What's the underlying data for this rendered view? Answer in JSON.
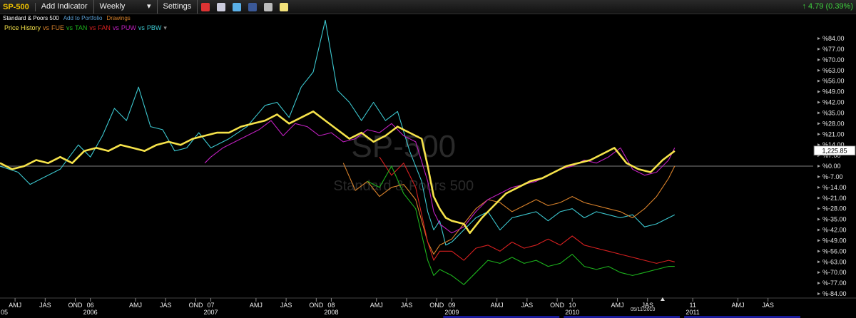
{
  "toolbar": {
    "symbol": "SP-500",
    "add_indicator": "Add Indicator",
    "period": "Weekly",
    "settings": "Settings",
    "change": "4.79 (0.39%)",
    "icons": [
      "clock-icon",
      "book-icon",
      "twitter-icon",
      "facebook-icon",
      "camera-icon",
      "note-icon"
    ]
  },
  "subbar": {
    "name": "Standard & Poors 500",
    "add_portfolio": "Add to Portfolio",
    "drawings": "Drawings"
  },
  "legend": [
    {
      "label": "Price History",
      "color": "#f5e24a"
    },
    {
      "label": "vs",
      "color": "#d9822b"
    },
    {
      "label": "FUE",
      "color": "#d9822b"
    },
    {
      "label": "vs",
      "color": "#1db31d"
    },
    {
      "label": "TAN",
      "color": "#1db31d"
    },
    {
      "label": "vs",
      "color": "#d62020"
    },
    {
      "label": "FAN",
      "color": "#d62020"
    },
    {
      "label": "vs",
      "color": "#c020c0"
    },
    {
      "label": "PUW",
      "color": "#c020c0"
    },
    {
      "label": "vs",
      "color": "#3cc7cf"
    },
    {
      "label": "PBW",
      "color": "#3cc7cf"
    },
    {
      "label": "▾",
      "color": "#888888"
    }
  ],
  "watermark": {
    "symbol": "SP-500",
    "name": "Standard & Poors 500"
  },
  "last_value": "1,225.85",
  "date_label": "05/11/2010",
  "chart_data": {
    "type": "line",
    "y_axis_labels": [
      "%84.00",
      "%77.00",
      "%70.00",
      "%63.00",
      "%56.00",
      "%49.00",
      "%42.00",
      "%35.00",
      "%28.00",
      "%21.00",
      "%14.00",
      "%7.00",
      "%0.00",
      "%-7.00",
      "%-14.00",
      "%-21.00",
      "%-28.00",
      "%-35.00",
      "%-42.00",
      "%-49.00",
      "%-56.00",
      "%-63.00",
      "%-70.00",
      "%-77.00",
      "%-84.00"
    ],
    "ylim": [
      -84,
      84
    ],
    "xlim": [
      2005.25,
      2012.0
    ],
    "x_ticks": [
      {
        "label": "05",
        "x": 2005.0
      },
      {
        "label": "AMJ",
        "x": 2005.375
      },
      {
        "label": "JAS",
        "x": 2005.625
      },
      {
        "label": "OND",
        "x": 2005.875
      },
      {
        "label": "06",
        "x": 2006.0
      },
      {
        "label": "AMJ",
        "x": 2006.375
      },
      {
        "label": "JAS",
        "x": 2006.625
      },
      {
        "label": "OND",
        "x": 2006.875
      },
      {
        "label": "07",
        "x": 2007.0
      },
      {
        "label": "AMJ",
        "x": 2007.375
      },
      {
        "label": "JAS",
        "x": 2007.625
      },
      {
        "label": "OND",
        "x": 2007.875
      },
      {
        "label": "08",
        "x": 2008.0
      },
      {
        "label": "AMJ",
        "x": 2008.375
      },
      {
        "label": "JAS",
        "x": 2008.625
      },
      {
        "label": "OND",
        "x": 2008.875
      },
      {
        "label": "09",
        "x": 2009.0
      },
      {
        "label": "AMJ",
        "x": 2009.375
      },
      {
        "label": "JAS",
        "x": 2009.625
      },
      {
        "label": "OND",
        "x": 2009.875
      },
      {
        "label": "10",
        "x": 2010.0
      },
      {
        "label": "AMJ",
        "x": 2010.375
      },
      {
        "label": "JAS",
        "x": 2010.625
      },
      {
        "label": "11",
        "x": 2011.0
      },
      {
        "label": "AMJ",
        "x": 2011.375
      },
      {
        "label": "JAS",
        "x": 2011.625
      }
    ],
    "year_labels": [
      {
        "label": "2006",
        "x": 2006.0
      },
      {
        "label": "2007",
        "x": 2007.0
      },
      {
        "label": "2008",
        "x": 2008.0
      },
      {
        "label": "2009",
        "x": 2009.0
      },
      {
        "label": "2010",
        "x": 2010.0
      },
      {
        "label": "2011",
        "x": 2011.0
      }
    ],
    "series": [
      {
        "name": "PBW",
        "color": "#3cc7cf",
        "x": [
          2005.25,
          2005.4,
          2005.5,
          2005.6,
          2005.75,
          2005.9,
          2006.0,
          2006.1,
          2006.2,
          2006.3,
          2006.4,
          2006.5,
          2006.6,
          2006.7,
          2006.8,
          2006.9,
          2007.0,
          2007.15,
          2007.3,
          2007.45,
          2007.55,
          2007.65,
          2007.75,
          2007.85,
          2007.95,
          2008.05,
          2008.15,
          2008.25,
          2008.35,
          2008.45,
          2008.55,
          2008.65,
          2008.75,
          2008.8,
          2008.85,
          2008.9,
          2008.95,
          2009.0,
          2009.1,
          2009.2,
          2009.3,
          2009.4,
          2009.5,
          2009.6,
          2009.7,
          2009.8,
          2009.9,
          2010.0,
          2010.1,
          2010.2,
          2010.3,
          2010.4,
          2010.5,
          2010.6,
          2010.7,
          2010.8,
          2010.85
        ],
        "y": [
          0,
          -4,
          -12,
          -8,
          -2,
          14,
          6,
          20,
          38,
          30,
          52,
          26,
          24,
          10,
          12,
          22,
          12,
          18,
          26,
          40,
          42,
          32,
          52,
          62,
          96,
          50,
          42,
          30,
          42,
          30,
          36,
          10,
          -10,
          -30,
          -42,
          -36,
          -52,
          -50,
          -42,
          -34,
          -30,
          -42,
          -34,
          -32,
          -30,
          -36,
          -30,
          -28,
          -34,
          -30,
          -32,
          -34,
          -32,
          -40,
          -38,
          -34,
          -32
        ]
      },
      {
        "name": "FUE",
        "color": "#d9822b",
        "x": [
          2008.1,
          2008.2,
          2008.3,
          2008.4,
          2008.5,
          2008.6,
          2008.7,
          2008.8,
          2008.85,
          2008.9,
          2009.0,
          2009.1,
          2009.2,
          2009.3,
          2009.4,
          2009.5,
          2009.6,
          2009.7,
          2009.8,
          2009.9,
          2010.0,
          2010.1,
          2010.2,
          2010.3,
          2010.4,
          2010.5,
          2010.6,
          2010.7,
          2010.8,
          2010.85
        ],
        "y": [
          2,
          -16,
          -10,
          -20,
          -14,
          -12,
          -22,
          -50,
          -58,
          -52,
          -48,
          -38,
          -28,
          -22,
          -24,
          -30,
          -26,
          -22,
          -26,
          -24,
          -20,
          -24,
          -26,
          -28,
          -30,
          -34,
          -28,
          -20,
          -8,
          0
        ]
      },
      {
        "name": "PUW",
        "color": "#c020c0",
        "x": [
          2006.95,
          2007.0,
          2007.1,
          2007.2,
          2007.3,
          2007.4,
          2007.5,
          2007.6,
          2007.7,
          2007.8,
          2007.9,
          2008.0,
          2008.1,
          2008.2,
          2008.3,
          2008.4,
          2008.5,
          2008.6,
          2008.7,
          2008.8,
          2008.85,
          2008.9,
          2009.0,
          2009.1,
          2009.2,
          2009.3,
          2009.4,
          2009.5,
          2009.6,
          2009.7,
          2009.8,
          2009.9,
          2010.0,
          2010.1,
          2010.2,
          2010.3,
          2010.4,
          2010.5,
          2010.6,
          2010.7,
          2010.8,
          2010.85
        ],
        "y": [
          2,
          6,
          12,
          16,
          20,
          24,
          30,
          20,
          28,
          26,
          20,
          22,
          16,
          18,
          24,
          22,
          28,
          20,
          16,
          -10,
          -30,
          -38,
          -44,
          -40,
          -30,
          -22,
          -18,
          -14,
          -12,
          -10,
          -6,
          -2,
          0,
          4,
          2,
          6,
          12,
          -2,
          -6,
          -4,
          4,
          12
        ]
      },
      {
        "name": "FAN",
        "color": "#d62020",
        "x": [
          2008.4,
          2008.5,
          2008.6,
          2008.7,
          2008.8,
          2008.85,
          2008.9,
          2009.0,
          2009.1,
          2009.2,
          2009.3,
          2009.4,
          2009.5,
          2009.6,
          2009.7,
          2009.8,
          2009.9,
          2010.0,
          2010.1,
          2010.2,
          2010.3,
          2010.4,
          2010.5,
          2010.6,
          2010.7,
          2010.8,
          2010.85
        ],
        "y": [
          6,
          -6,
          2,
          -14,
          -50,
          -62,
          -56,
          -56,
          -62,
          -54,
          -52,
          -56,
          -50,
          -54,
          -52,
          -48,
          -52,
          -46,
          -52,
          -54,
          -56,
          -58,
          -60,
          -62,
          -64,
          -62,
          -63
        ]
      },
      {
        "name": "TAN",
        "color": "#1db31d",
        "x": [
          2008.3,
          2008.4,
          2008.5,
          2008.6,
          2008.7,
          2008.8,
          2008.85,
          2008.9,
          2009.0,
          2009.1,
          2009.2,
          2009.3,
          2009.4,
          2009.5,
          2009.6,
          2009.7,
          2009.8,
          2009.9,
          2010.0,
          2010.1,
          2010.2,
          2010.3,
          2010.4,
          2010.5,
          2010.6,
          2010.7,
          2010.8,
          2010.85
        ],
        "y": [
          -10,
          -14,
          0,
          -18,
          -28,
          -62,
          -72,
          -68,
          -72,
          -78,
          -70,
          -62,
          -64,
          -60,
          -64,
          -62,
          -66,
          -64,
          -58,
          -66,
          -68,
          -66,
          -70,
          -72,
          -70,
          -68,
          -66,
          -66
        ]
      },
      {
        "name": "Price History",
        "color": "#f5e24a",
        "x": [
          2005.25,
          2005.35,
          2005.45,
          2005.55,
          2005.65,
          2005.75,
          2005.85,
          2005.95,
          2006.05,
          2006.15,
          2006.25,
          2006.35,
          2006.45,
          2006.55,
          2006.65,
          2006.75,
          2006.85,
          2006.95,
          2007.05,
          2007.15,
          2007.25,
          2007.35,
          2007.45,
          2007.55,
          2007.65,
          2007.75,
          2007.85,
          2007.95,
          2008.05,
          2008.15,
          2008.25,
          2008.35,
          2008.45,
          2008.55,
          2008.65,
          2008.75,
          2008.8,
          2008.85,
          2008.9,
          2008.95,
          2009.0,
          2009.1,
          2009.15,
          2009.25,
          2009.35,
          2009.45,
          2009.55,
          2009.65,
          2009.75,
          2009.85,
          2009.95,
          2010.05,
          2010.15,
          2010.25,
          2010.35,
          2010.45,
          2010.55,
          2010.65,
          2010.75,
          2010.85
        ],
        "y": [
          2,
          -2,
          0,
          4,
          2,
          6,
          2,
          10,
          12,
          10,
          14,
          12,
          10,
          14,
          16,
          14,
          18,
          20,
          22,
          22,
          26,
          28,
          30,
          34,
          28,
          32,
          36,
          30,
          24,
          18,
          22,
          16,
          20,
          26,
          22,
          18,
          0,
          -20,
          -28,
          -34,
          -36,
          -38,
          -44,
          -34,
          -26,
          -18,
          -14,
          -10,
          -8,
          -4,
          0,
          2,
          4,
          8,
          12,
          2,
          -2,
          -4,
          4,
          10
        ]
      }
    ]
  }
}
